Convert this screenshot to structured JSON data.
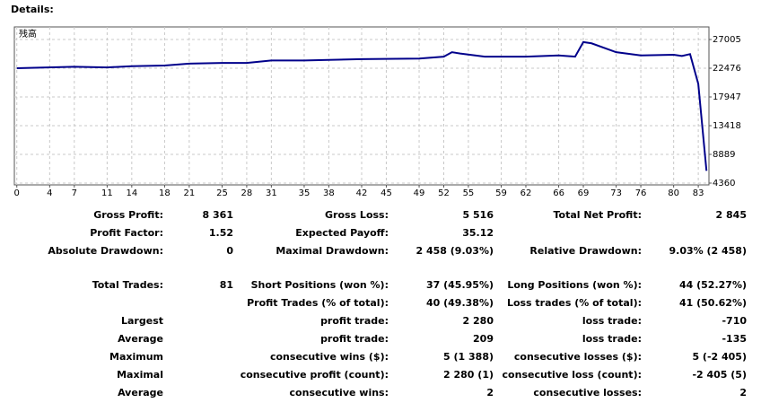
{
  "header": {
    "title": "Details:"
  },
  "chart_data": {
    "type": "line",
    "x": [
      0,
      7,
      11,
      14,
      18,
      21,
      25,
      28,
      31,
      35,
      42,
      49,
      52,
      53,
      54,
      57,
      62,
      66,
      68,
      69,
      70,
      73,
      76,
      80,
      81,
      82,
      83,
      84
    ],
    "series": [
      {
        "name": "残高",
        "color": "#00008b",
        "values": [
          22476,
          22700,
          22600,
          22800,
          22900,
          23200,
          23300,
          23300,
          23700,
          23700,
          23900,
          24000,
          24300,
          25000,
          24800,
          24300,
          24300,
          24500,
          24300,
          26600,
          26400,
          25000,
          24500,
          24600,
          24400,
          24700,
          20000,
          6300
        ]
      }
    ],
    "xlim": [
      -0.3,
      84.3
    ],
    "ylim": [
      4077,
      28986
    ],
    "xticks": [
      0,
      4,
      7,
      11,
      14,
      18,
      21,
      25,
      28,
      31,
      35,
      38,
      42,
      45,
      49,
      52,
      55,
      59,
      62,
      66,
      69,
      73,
      76,
      80,
      83
    ],
    "yticks": [
      4360,
      8889,
      13418,
      17947,
      22476,
      27005
    ],
    "grid": true
  },
  "table": {
    "rows": [
      [
        "Gross Profit:",
        "8 361",
        "Gross Loss:",
        "5 516",
        "Total Net Profit:",
        "2 845"
      ],
      [
        "Profit Factor:",
        "1.52",
        "Expected Payoff:",
        "35.12",
        null,
        null
      ],
      [
        "Absolute Drawdown:",
        "0",
        "Maximal Drawdown:",
        "2 458 (9.03%)",
        "Relative Drawdown:",
        "9.03% (2 458)"
      ],
      [
        "Total Trades:",
        "81",
        "Short Positions (won %):",
        "37 (45.95%)",
        "Long Positions (won %):",
        "44 (52.27%)"
      ],
      [
        null,
        null,
        "Profit Trades (% of total):",
        "40 (49.38%)",
        "Loss trades (% of total):",
        "41 (50.62%)"
      ],
      [
        "Largest",
        null,
        "profit trade:",
        "2 280",
        "loss trade:",
        "-710"
      ],
      [
        "Average",
        null,
        "profit trade:",
        "209",
        "loss trade:",
        "-135"
      ],
      [
        "Maximum",
        null,
        "consecutive wins ($):",
        "5 (1 388)",
        "consecutive losses ($):",
        "5 (-2 405)"
      ],
      [
        "Maximal",
        null,
        "consecutive profit (count):",
        "2 280 (1)",
        "consecutive loss (count):",
        "-2 405 (5)"
      ],
      [
        "Average",
        null,
        "consecutive wins:",
        "2",
        "consecutive losses:",
        "2"
      ]
    ]
  }
}
